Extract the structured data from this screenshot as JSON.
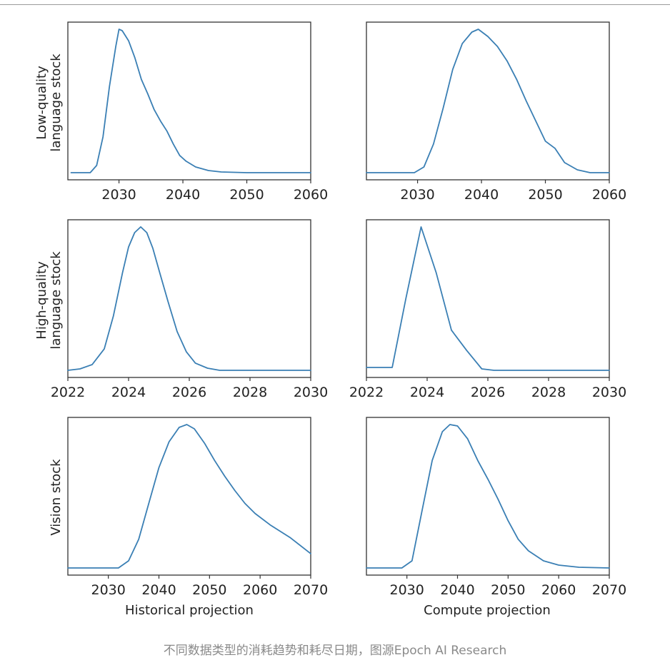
{
  "caption": "不同数据类型的消耗趋势和耗尽日期，图源Epoch AI Research",
  "columns": {
    "left_label": "Historical projection",
    "right_label": "Compute projection"
  },
  "rows": {
    "top_label_line1": "Low-quality",
    "top_label_line2": "language stock",
    "middle_label_line1": "High-quality",
    "middle_label_line2": "language stock",
    "bottom_label": "Vision stock"
  },
  "colors": {
    "line": "#3a7fb4",
    "axes": "#333333",
    "tick_text": "#222222"
  },
  "chart_data": [
    {
      "type": "line",
      "panel": "low-quality-historical",
      "title": "",
      "xlabel": "",
      "ylabel": "Low-quality language stock",
      "xlim": [
        2022,
        2060
      ],
      "yaxis_ticks": false,
      "xticks": [
        2030,
        2040,
        2050,
        2060
      ],
      "x": [
        2022.5,
        2025.5,
        2026.5,
        2027.5,
        2028.5,
        2029.5,
        2030.0,
        2030.5,
        2031.5,
        2032.5,
        2033.5,
        2034.5,
        2035.5,
        2036.5,
        2037.5,
        2038.5,
        2039.5,
        2040.5,
        2042.0,
        2044.0,
        2046.0,
        2050.0,
        2060.0
      ],
      "y": [
        0.0,
        0.0,
        0.05,
        0.25,
        0.6,
        0.88,
        1.0,
        0.99,
        0.92,
        0.8,
        0.65,
        0.55,
        0.44,
        0.36,
        0.29,
        0.2,
        0.12,
        0.08,
        0.04,
        0.015,
        0.005,
        0.0,
        0.0
      ]
    },
    {
      "type": "line",
      "panel": "low-quality-compute",
      "title": "",
      "xlabel": "",
      "ylabel": "",
      "xlim": [
        2022,
        2060
      ],
      "yaxis_ticks": false,
      "xticks": [
        2030,
        2040,
        2050,
        2060
      ],
      "x": [
        2022.0,
        2029.5,
        2031.0,
        2032.5,
        2034.0,
        2035.5,
        2037.0,
        2038.5,
        2039.5,
        2041.0,
        2042.5,
        2044.0,
        2045.5,
        2047.0,
        2048.5,
        2050.0,
        2051.5,
        2053.0,
        2055.0,
        2057.0,
        2060.0
      ],
      "y": [
        0.0,
        0.0,
        0.04,
        0.2,
        0.45,
        0.72,
        0.9,
        0.98,
        1.0,
        0.95,
        0.88,
        0.78,
        0.65,
        0.5,
        0.36,
        0.22,
        0.17,
        0.07,
        0.02,
        0.0,
        0.0
      ]
    },
    {
      "type": "line",
      "panel": "high-quality-historical",
      "title": "",
      "xlabel": "",
      "ylabel": "High-quality language stock",
      "xlim": [
        2022,
        2030
      ],
      "yaxis_ticks": false,
      "xticks": [
        2022,
        2024,
        2026,
        2028,
        2030
      ],
      "x": [
        2022.0,
        2022.4,
        2022.8,
        2023.2,
        2023.5,
        2023.8,
        2024.0,
        2024.2,
        2024.4,
        2024.6,
        2024.8,
        2025.0,
        2025.3,
        2025.6,
        2025.9,
        2026.2,
        2026.6,
        2027.0,
        2030.0
      ],
      "y": [
        0.0,
        0.01,
        0.04,
        0.15,
        0.38,
        0.68,
        0.86,
        0.96,
        1.0,
        0.96,
        0.85,
        0.7,
        0.48,
        0.27,
        0.13,
        0.05,
        0.015,
        0.0,
        0.0
      ]
    },
    {
      "type": "line",
      "panel": "high-quality-compute",
      "title": "",
      "xlabel": "",
      "ylabel": "",
      "xlim": [
        2022,
        2030
      ],
      "yaxis_ticks": false,
      "xticks": [
        2022,
        2024,
        2026,
        2028,
        2030
      ],
      "x": [
        2022.0,
        2022.85,
        2023.3,
        2023.8,
        2024.3,
        2024.8,
        2025.3,
        2025.8,
        2026.2,
        2030.0
      ],
      "y": [
        0.02,
        0.02,
        0.5,
        1.0,
        0.68,
        0.28,
        0.14,
        0.01,
        0.0,
        0.0
      ]
    },
    {
      "type": "line",
      "panel": "vision-historical",
      "title": "",
      "xlabel": "Historical projection",
      "ylabel": "Vision stock",
      "xlim": [
        2022,
        2070
      ],
      "yaxis_ticks": false,
      "xticks": [
        2030,
        2040,
        2050,
        2060,
        2070
      ],
      "x": [
        2022.0,
        2032.0,
        2034.0,
        2036.0,
        2038.0,
        2040.0,
        2042.0,
        2044.0,
        2045.5,
        2047.0,
        2049.0,
        2051.0,
        2053.0,
        2055.0,
        2057.0,
        2059.0,
        2062.0,
        2066.0,
        2070.0
      ],
      "y": [
        0.0,
        0.0,
        0.05,
        0.2,
        0.45,
        0.7,
        0.88,
        0.98,
        1.0,
        0.97,
        0.87,
        0.75,
        0.64,
        0.54,
        0.45,
        0.38,
        0.3,
        0.21,
        0.1
      ]
    },
    {
      "type": "line",
      "panel": "vision-compute",
      "title": "",
      "xlabel": "Compute projection",
      "ylabel": "",
      "xlim": [
        2022,
        2070
      ],
      "yaxis_ticks": false,
      "xticks": [
        2030,
        2040,
        2050,
        2060,
        2070
      ],
      "x": [
        2022.0,
        2029.0,
        2031.0,
        2033.0,
        2035.0,
        2037.0,
        2038.5,
        2040.0,
        2042.0,
        2044.0,
        2046.0,
        2048.0,
        2050.0,
        2052.0,
        2054.0,
        2057.0,
        2060.0,
        2064.0,
        2070.0
      ],
      "y": [
        0.0,
        0.0,
        0.05,
        0.4,
        0.75,
        0.95,
        1.0,
        0.99,
        0.9,
        0.75,
        0.62,
        0.48,
        0.33,
        0.2,
        0.12,
        0.05,
        0.02,
        0.005,
        0.0
      ]
    }
  ]
}
